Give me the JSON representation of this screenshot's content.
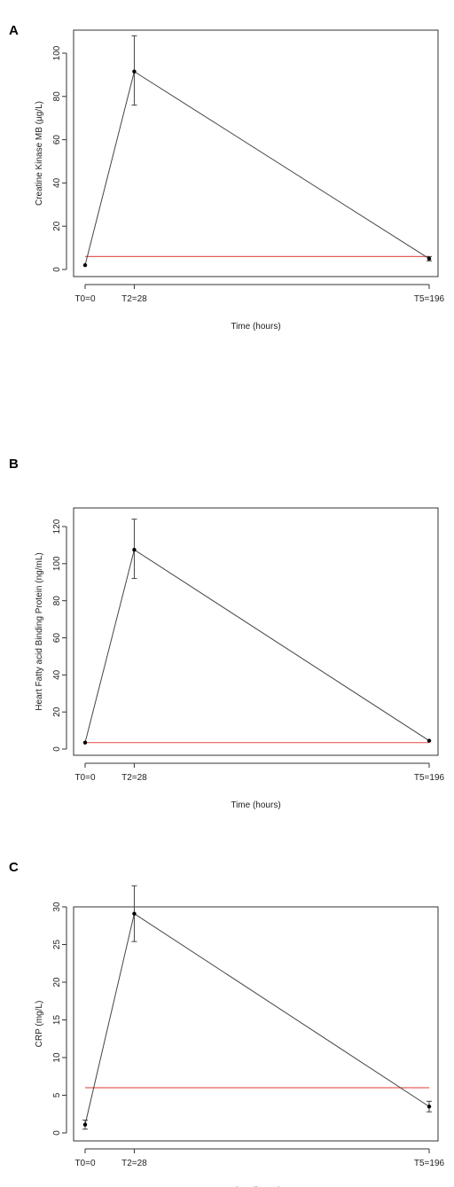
{
  "chart_data": [
    {
      "panel_label": "A",
      "type": "line",
      "x_categories": [
        "T0=0",
        "T2=28",
        "T5=196"
      ],
      "x": [
        0,
        28,
        196
      ],
      "xlabel": "Time (hours)",
      "ylabel": "Creatine Kinase MB (µg/L)",
      "ylim": [
        0,
        100
      ],
      "yticks": [
        0,
        20,
        40,
        60,
        80,
        100
      ],
      "series": [
        {
          "values": [
            2,
            91.5,
            5
          ],
          "error_low": [
            null,
            76,
            4
          ],
          "error_high": [
            null,
            108,
            6
          ]
        }
      ],
      "reference_line": {
        "value": 6,
        "color": "#e8605a"
      },
      "grid": false
    },
    {
      "panel_label": "B",
      "type": "line",
      "x_categories": [
        "T0=0",
        "T2=28",
        "T5=196"
      ],
      "x": [
        0,
        28,
        196
      ],
      "xlabel": "Time (hours)",
      "ylabel": "Heart Fatty acid Binding Protein (ng/mL)",
      "ylim": [
        0,
        120
      ],
      "yticks": [
        0,
        20,
        40,
        60,
        80,
        100,
        120
      ],
      "series": [
        {
          "values": [
            3.5,
            107.5,
            4.5
          ],
          "error_low": [
            null,
            92,
            null
          ],
          "error_high": [
            null,
            124,
            null
          ]
        }
      ],
      "reference_line": {
        "value": 3.5,
        "color": "#e8605a"
      },
      "grid": false
    },
    {
      "panel_label": "C",
      "type": "line",
      "x_categories": [
        "T0=0",
        "T2=28",
        "T5=196"
      ],
      "x": [
        0,
        28,
        196
      ],
      "xlabel": "Time (hours)",
      "ylabel": "CRP (mg/L)",
      "ylim": [
        0,
        30
      ],
      "yticks": [
        0,
        5,
        10,
        15,
        20,
        25,
        30
      ],
      "series": [
        {
          "values": [
            1.1,
            29.1,
            3.5
          ],
          "error_low": [
            0.5,
            25.4,
            2.8
          ],
          "error_high": [
            1.7,
            32.8,
            4.2
          ]
        }
      ],
      "reference_line": {
        "value": 6,
        "color": "#e8605a"
      },
      "grid": false
    }
  ]
}
